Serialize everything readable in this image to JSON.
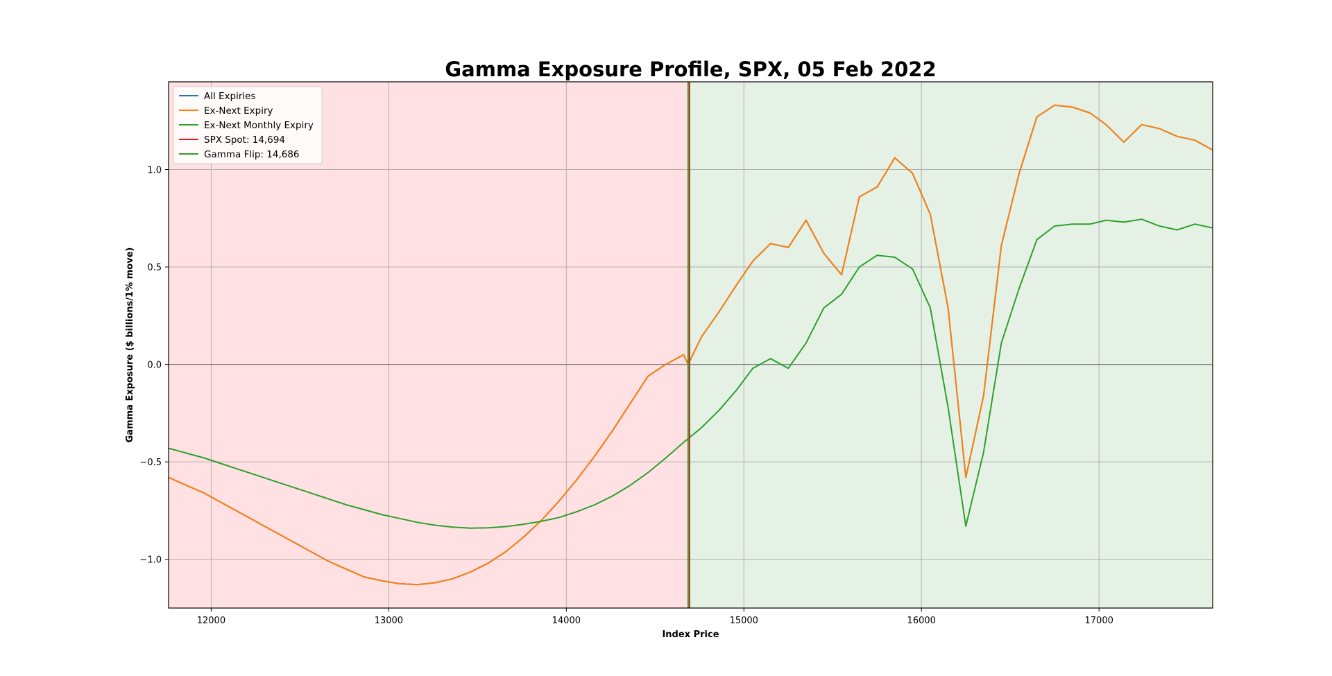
{
  "chart_data": {
    "type": "line",
    "title": "Gamma Exposure Profile, SPX, 05 Feb 2022",
    "xlabel": "Index Price",
    "ylabel": "Gamma Exposure ($ billions/1% move)",
    "xlim": [
      11760,
      17640
    ],
    "ylim": [
      -1.25,
      1.45
    ],
    "xticks": [
      12000,
      13000,
      14000,
      15000,
      16000,
      17000
    ],
    "xtick_labels": [
      "12000",
      "13000",
      "14000",
      "15000",
      "16000",
      "17000"
    ],
    "yticks": [
      -1.0,
      -0.5,
      0.0,
      0.5,
      1.0
    ],
    "ytick_labels": [
      "−1.0",
      "−0.5",
      "0.0",
      "0.5",
      "1.0"
    ],
    "grid": true,
    "legend_position": "upper-left",
    "spot": 14694,
    "gamma_flip": 14686,
    "regions": [
      {
        "name": "negative-gamma",
        "from": 11760,
        "to": 14686,
        "color": "#ffe1e3"
      },
      {
        "name": "positive-gamma",
        "from": 14686,
        "to": 17640,
        "color": "#e5f1e4"
      }
    ],
    "series": [
      {
        "name": "All Expiries",
        "color": "#1f77b4",
        "x": [
          11760,
          11860,
          11960,
          12060,
          12160,
          12260,
          12360,
          12460,
          12560,
          12660,
          12760,
          12860,
          12960,
          13060,
          13160,
          13260,
          13360,
          13460,
          13560,
          13660,
          13760,
          13860,
          13960,
          14060,
          14160,
          14260,
          14360,
          14460,
          14560,
          14660,
          14686,
          14760,
          14860,
          14960,
          15050,
          15150,
          15250,
          15350,
          15450,
          15550,
          15650,
          15750,
          15850,
          15950,
          16050,
          16150,
          16250,
          16350,
          16450,
          16550,
          16650,
          16750,
          16850,
          16950,
          17040,
          17140,
          17240,
          17340,
          17440,
          17540,
          17640
        ],
        "y": [
          -0.58,
          -0.62,
          -0.66,
          -0.71,
          -0.76,
          -0.81,
          -0.86,
          -0.91,
          -0.96,
          -1.01,
          -1.05,
          -1.09,
          -1.11,
          -1.125,
          -1.13,
          -1.12,
          -1.1,
          -1.065,
          -1.02,
          -0.96,
          -0.885,
          -0.8,
          -0.7,
          -0.59,
          -0.47,
          -0.34,
          -0.2,
          -0.06,
          0.0,
          0.05,
          0.0,
          0.14,
          0.27,
          0.41,
          0.53,
          0.62,
          0.6,
          0.74,
          0.57,
          0.46,
          0.86,
          0.91,
          1.06,
          0.98,
          0.77,
          0.29,
          -0.58,
          -0.16,
          0.61,
          0.98,
          1.27,
          1.33,
          1.32,
          1.29,
          1.23,
          1.14,
          1.23,
          1.21,
          1.17,
          1.15,
          1.1
        ]
      },
      {
        "name": "Ex-Next Expiry",
        "color": "#ff7f0e",
        "x": [
          11760,
          11860,
          11960,
          12060,
          12160,
          12260,
          12360,
          12460,
          12560,
          12660,
          12760,
          12860,
          12960,
          13060,
          13160,
          13260,
          13360,
          13460,
          13560,
          13660,
          13760,
          13860,
          13960,
          14060,
          14160,
          14260,
          14360,
          14460,
          14560,
          14660,
          14686,
          14760,
          14860,
          14960,
          15050,
          15150,
          15250,
          15350,
          15450,
          15550,
          15650,
          15750,
          15850,
          15950,
          16050,
          16150,
          16250,
          16350,
          16450,
          16550,
          16650,
          16750,
          16850,
          16950,
          17040,
          17140,
          17240,
          17340,
          17440,
          17540,
          17640
        ],
        "y": [
          -0.58,
          -0.62,
          -0.66,
          -0.71,
          -0.76,
          -0.81,
          -0.86,
          -0.91,
          -0.96,
          -1.01,
          -1.05,
          -1.09,
          -1.11,
          -1.125,
          -1.13,
          -1.12,
          -1.1,
          -1.065,
          -1.02,
          -0.96,
          -0.885,
          -0.8,
          -0.7,
          -0.59,
          -0.47,
          -0.34,
          -0.2,
          -0.06,
          0.0,
          0.05,
          0.0,
          0.14,
          0.27,
          0.41,
          0.53,
          0.62,
          0.6,
          0.74,
          0.57,
          0.46,
          0.86,
          0.91,
          1.06,
          0.98,
          0.77,
          0.29,
          -0.58,
          -0.16,
          0.61,
          0.98,
          1.27,
          1.33,
          1.32,
          1.29,
          1.23,
          1.14,
          1.23,
          1.21,
          1.17,
          1.15,
          1.1
        ]
      },
      {
        "name": "Ex-Next Monthly Expiry",
        "color": "#2ca02c",
        "x": [
          11760,
          11860,
          11960,
          12060,
          12160,
          12260,
          12360,
          12460,
          12560,
          12660,
          12760,
          12860,
          12960,
          13060,
          13160,
          13260,
          13360,
          13460,
          13560,
          13660,
          13760,
          13860,
          13960,
          14060,
          14160,
          14260,
          14360,
          14460,
          14560,
          14660,
          14760,
          14860,
          14960,
          15050,
          15150,
          15250,
          15350,
          15450,
          15550,
          15650,
          15750,
          15850,
          15950,
          16050,
          16150,
          16250,
          16350,
          16450,
          16550,
          16650,
          16750,
          16850,
          16950,
          17040,
          17140,
          17240,
          17340,
          17440,
          17540,
          17640
        ],
        "y": [
          -0.43,
          -0.455,
          -0.48,
          -0.51,
          -0.54,
          -0.57,
          -0.6,
          -0.63,
          -0.66,
          -0.69,
          -0.72,
          -0.745,
          -0.77,
          -0.79,
          -0.81,
          -0.825,
          -0.835,
          -0.84,
          -0.838,
          -0.832,
          -0.82,
          -0.805,
          -0.785,
          -0.755,
          -0.72,
          -0.675,
          -0.62,
          -0.555,
          -0.48,
          -0.4,
          -0.325,
          -0.235,
          -0.13,
          -0.02,
          0.03,
          -0.02,
          0.11,
          0.29,
          0.36,
          0.5,
          0.56,
          0.55,
          0.49,
          0.29,
          -0.22,
          -0.83,
          -0.45,
          0.11,
          0.39,
          0.64,
          0.71,
          0.72,
          0.72,
          0.74,
          0.73,
          0.745,
          0.71,
          0.69,
          0.72,
          0.7
        ]
      }
    ],
    "legend": [
      {
        "label": "All Expiries",
        "color": "#1f77b4"
      },
      {
        "label": "Ex-Next Expiry",
        "color": "#ff7f0e"
      },
      {
        "label": "Ex-Next Monthly Expiry",
        "color": "#2ca02c"
      },
      {
        "label": "SPX Spot: 14,694",
        "color": "#d62728"
      },
      {
        "label": "Gamma Flip: 14,686",
        "color": "#2ca02c"
      }
    ]
  }
}
